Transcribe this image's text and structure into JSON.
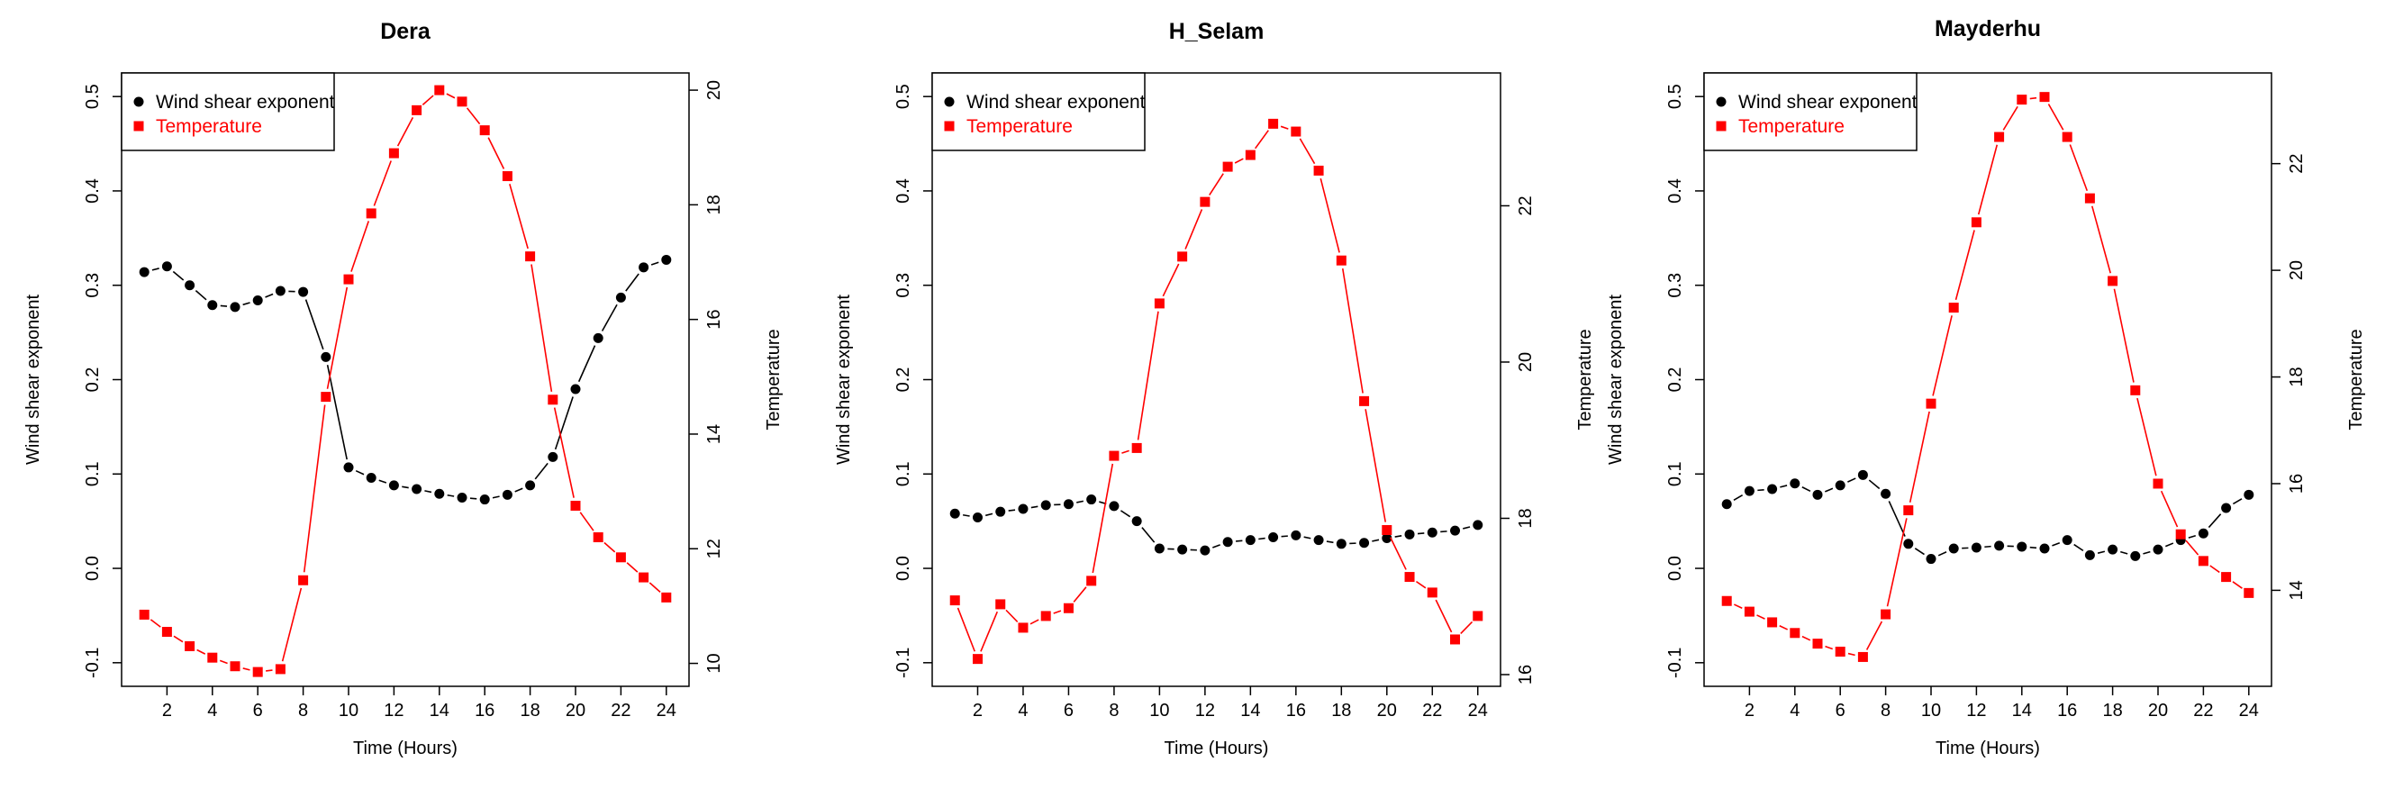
{
  "colors": {
    "shear": "#000000",
    "temperature": "#ff0000"
  },
  "chart_data": [
    {
      "type": "line",
      "title": "Dera",
      "xlabel": "Time (Hours)",
      "ylabel": "Wind shear exponent",
      "y2label": "Temperature",
      "x": [
        1,
        2,
        3,
        4,
        5,
        6,
        7,
        8,
        9,
        10,
        11,
        12,
        13,
        14,
        15,
        16,
        17,
        18,
        19,
        20,
        21,
        22,
        23,
        24
      ],
      "xticks": [
        2,
        4,
        6,
        8,
        10,
        12,
        14,
        16,
        18,
        20,
        22,
        24
      ],
      "xtick_labels": [
        "2",
        "4",
        "6",
        "8",
        "10",
        "12",
        "14",
        "16",
        "18",
        "20",
        "22",
        "24"
      ],
      "xlim": [
        0,
        25
      ],
      "ylim": [
        -0.125,
        0.525
      ],
      "yticks": [
        -0.1,
        0.0,
        0.1,
        0.2,
        0.3,
        0.4,
        0.5
      ],
      "ytick_labels": [
        "-0.1",
        "0.0",
        "0.1",
        "0.2",
        "0.3",
        "0.4",
        "0.5"
      ],
      "y2lim": [
        9.6,
        20.3
      ],
      "y2ticks": [
        10,
        12,
        14,
        16,
        18,
        20
      ],
      "y2tick_labels": [
        "10",
        "12",
        "14",
        "16",
        "18",
        "20"
      ],
      "legend": [
        "Wind shear exponent",
        "Temperature"
      ],
      "legend_position": "top-left",
      "series": [
        {
          "name": "Wind shear exponent",
          "axis": "left",
          "marker": "circle",
          "values": [
            0.314,
            0.32,
            0.3,
            0.279,
            0.277,
            0.284,
            0.294,
            0.293,
            0.224,
            0.107,
            0.096,
            0.088,
            0.084,
            0.079,
            0.075,
            0.073,
            0.078,
            0.088,
            0.118,
            0.19,
            0.244,
            0.287,
            0.319,
            0.327
          ]
        },
        {
          "name": "Temperature",
          "axis": "right",
          "marker": "square",
          "values": [
            10.85,
            10.55,
            10.3,
            10.1,
            9.95,
            9.85,
            9.9,
            11.45,
            14.65,
            16.7,
            17.85,
            18.9,
            19.65,
            20.0,
            19.8,
            19.3,
            18.5,
            17.1,
            14.6,
            12.75,
            12.2,
            11.85,
            11.5,
            11.15
          ]
        }
      ]
    },
    {
      "type": "line",
      "title": "H_Selam",
      "xlabel": "Time (Hours)",
      "ylabel": "Wind shear exponent",
      "y2label": "Temperature",
      "x": [
        1,
        2,
        3,
        4,
        5,
        6,
        7,
        8,
        9,
        10,
        11,
        12,
        13,
        14,
        15,
        16,
        17,
        18,
        19,
        20,
        21,
        22,
        23,
        24
      ],
      "xticks": [
        2,
        4,
        6,
        8,
        10,
        12,
        14,
        16,
        18,
        20,
        22,
        24
      ],
      "xtick_labels": [
        "2",
        "4",
        "6",
        "8",
        "10",
        "12",
        "14",
        "16",
        "18",
        "20",
        "22",
        "24"
      ],
      "xlim": [
        0,
        25
      ],
      "ylim": [
        -0.125,
        0.525
      ],
      "yticks": [
        -0.1,
        0.0,
        0.1,
        0.2,
        0.3,
        0.4,
        0.5
      ],
      "ytick_labels": [
        "-0.1",
        "0.0",
        "0.1",
        "0.2",
        "0.3",
        "0.4",
        "0.5"
      ],
      "y2lim": [
        15.85,
        23.7
      ],
      "y2ticks": [
        16,
        18,
        20,
        22
      ],
      "y2tick_labels": [
        "16",
        "18",
        "20",
        "22"
      ],
      "legend": [
        "Wind shear exponent",
        "Temperature"
      ],
      "legend_position": "top-left",
      "series": [
        {
          "name": "Wind shear exponent",
          "axis": "left",
          "marker": "circle",
          "values": [
            0.058,
            0.054,
            0.06,
            0.063,
            0.067,
            0.068,
            0.073,
            0.066,
            0.05,
            0.021,
            0.02,
            0.019,
            0.028,
            0.03,
            0.033,
            0.035,
            0.03,
            0.026,
            0.027,
            0.032,
            0.036,
            0.038,
            0.04,
            0.046
          ]
        },
        {
          "name": "Temperature",
          "axis": "right",
          "marker": "square",
          "values": [
            16.95,
            16.2,
            16.9,
            16.6,
            16.75,
            16.85,
            17.2,
            18.8,
            18.9,
            20.75,
            21.35,
            22.05,
            22.5,
            22.65,
            23.05,
            22.95,
            22.45,
            21.3,
            19.5,
            17.85,
            17.25,
            17.05,
            16.45,
            16.75
          ]
        }
      ]
    },
    {
      "type": "line",
      "title": "Mayderhu",
      "xlabel": "Time (Hours)",
      "ylabel": "Wind shear exponent",
      "y2label": "Temperature",
      "x": [
        1,
        2,
        3,
        4,
        5,
        6,
        7,
        8,
        9,
        10,
        11,
        12,
        13,
        14,
        15,
        16,
        17,
        18,
        19,
        20,
        21,
        22,
        23,
        24
      ],
      "xticks": [
        2,
        4,
        6,
        8,
        10,
        12,
        14,
        16,
        18,
        20,
        22,
        24
      ],
      "xtick_labels": [
        "2",
        "4",
        "6",
        "8",
        "10",
        "12",
        "14",
        "16",
        "18",
        "20",
        "22",
        "24"
      ],
      "xlim": [
        0,
        25
      ],
      "ylim": [
        -0.125,
        0.525
      ],
      "yticks": [
        -0.1,
        0.0,
        0.1,
        0.2,
        0.3,
        0.4,
        0.5
      ],
      "ytick_labels": [
        "-0.1",
        "0.0",
        "0.1",
        "0.2",
        "0.3",
        "0.4",
        "0.5"
      ],
      "y2lim": [
        12.2,
        23.7
      ],
      "y2ticks": [
        14,
        16,
        18,
        20,
        22
      ],
      "y2tick_labels": [
        "14",
        "16",
        "18",
        "20",
        "22"
      ],
      "legend": [
        "Wind shear exponent",
        "Temperature"
      ],
      "legend_position": "top-left",
      "series": [
        {
          "name": "Wind shear exponent",
          "axis": "left",
          "marker": "circle",
          "values": [
            0.068,
            0.082,
            0.084,
            0.09,
            0.078,
            0.088,
            0.099,
            0.079,
            0.026,
            0.01,
            0.021,
            0.022,
            0.024,
            0.023,
            0.021,
            0.03,
            0.014,
            0.02,
            0.013,
            0.02,
            0.03,
            0.037,
            0.064,
            0.078
          ]
        },
        {
          "name": "Temperature",
          "axis": "right",
          "marker": "square",
          "values": [
            13.8,
            13.6,
            13.4,
            13.2,
            13.0,
            12.85,
            12.75,
            13.55,
            15.5,
            17.5,
            19.3,
            20.9,
            22.5,
            23.2,
            23.25,
            22.5,
            21.35,
            19.8,
            17.75,
            16.0,
            15.05,
            14.55,
            14.25,
            13.95
          ]
        }
      ]
    }
  ]
}
